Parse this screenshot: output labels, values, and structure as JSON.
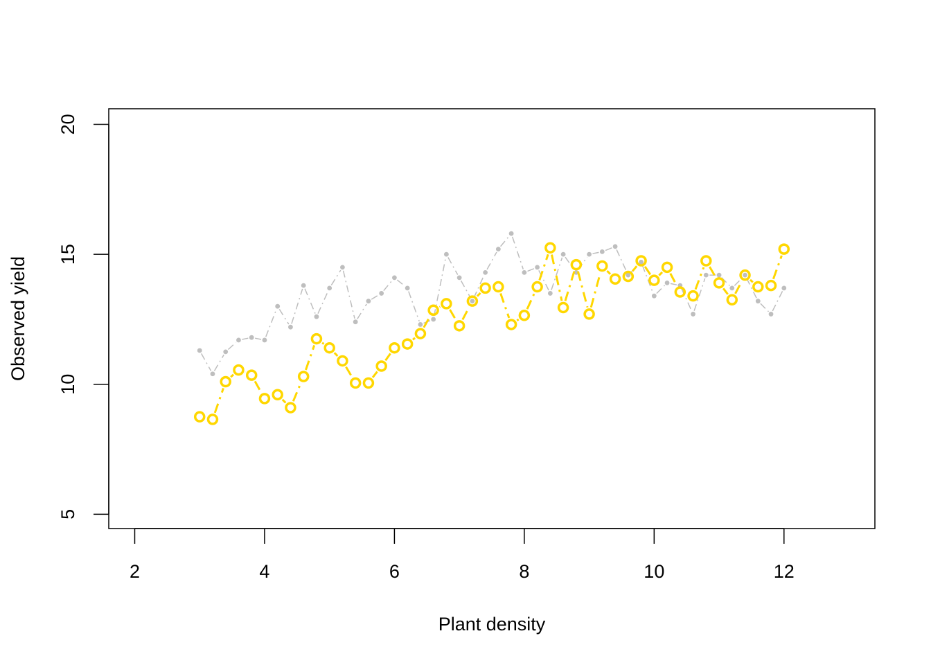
{
  "chart_data": {
    "type": "line",
    "title": "",
    "xlabel": "Plant density",
    "ylabel": "Observed yield",
    "xlim": [
      1.6,
      13.4
    ],
    "ylim": [
      4.45,
      20.6
    ],
    "x_ticks": [
      2,
      4,
      6,
      8,
      10,
      12
    ],
    "y_ticks": [
      5,
      10,
      15,
      20
    ],
    "grid": false,
    "legend": "none",
    "x": [
      3.0,
      3.2,
      3.4,
      3.6,
      3.8,
      4.0,
      4.2,
      4.4,
      4.6,
      4.8,
      5.0,
      5.2,
      5.4,
      5.6,
      5.8,
      6.0,
      6.2,
      6.4,
      6.6,
      6.8,
      7.0,
      7.2,
      7.4,
      7.6,
      7.8,
      8.0,
      8.2,
      8.4,
      8.6,
      8.8,
      9.0,
      9.2,
      9.4,
      9.6,
      9.8,
      10.0,
      10.2,
      10.4,
      10.6,
      10.8,
      11.0,
      11.2,
      11.4,
      11.6,
      11.8,
      12.0
    ],
    "series": [
      {
        "color": "#bebebe",
        "marker": "small-filled-dot",
        "line": "dashdot",
        "values": [
          11.3,
          10.4,
          11.25,
          11.7,
          11.8,
          11.7,
          13.0,
          12.2,
          13.8,
          12.6,
          13.7,
          14.5,
          12.4,
          13.2,
          13.5,
          14.1,
          13.7,
          12.3,
          12.5,
          15.0,
          14.1,
          13.2,
          14.3,
          15.2,
          15.8,
          14.3,
          14.5,
          13.5,
          15.0,
          14.3,
          15.0,
          15.1,
          15.3,
          14.2,
          14.7,
          13.4,
          13.9,
          13.8,
          12.7,
          14.2,
          14.2,
          13.7,
          14.2,
          13.2,
          12.7,
          13.7
        ]
      },
      {
        "color": "#ffd700",
        "marker": "open-circle",
        "line": "dashdot",
        "values": [
          8.75,
          8.65,
          10.1,
          10.55,
          10.35,
          9.45,
          9.6,
          9.1,
          10.3,
          11.75,
          11.4,
          10.9,
          10.05,
          10.05,
          10.7,
          11.4,
          11.55,
          11.95,
          12.85,
          13.1,
          12.25,
          13.2,
          13.7,
          13.75,
          12.3,
          12.65,
          13.75,
          15.25,
          12.95,
          14.6,
          12.7,
          14.55,
          14.05,
          14.15,
          14.75,
          14.0,
          14.5,
          13.55,
          13.4,
          14.75,
          13.9,
          13.25,
          14.2,
          13.75,
          13.8,
          15.2
        ]
      }
    ]
  }
}
